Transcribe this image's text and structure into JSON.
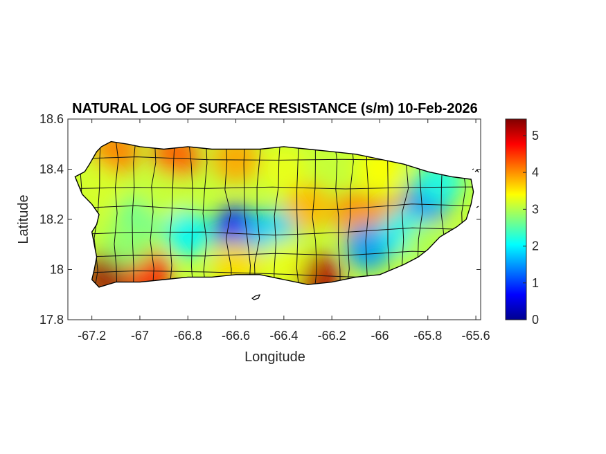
{
  "chart_data": {
    "type": "heatmap",
    "title": "NATURAL LOG OF SURFACE RESISTANCE (s/m) 10-Feb-2026",
    "xlabel": "Longitude",
    "ylabel": "Latitude",
    "xlim": [
      -67.3,
      -65.58
    ],
    "ylim": [
      17.8,
      18.6
    ],
    "x_ticks": [
      -67.2,
      -67,
      -66.8,
      -66.6,
      -66.4,
      -66.2,
      -66,
      -65.8,
      -65.6
    ],
    "x_tick_labels": [
      "-67.2",
      "-67",
      "-66.8",
      "-66.6",
      "-66.4",
      "-66.2",
      "-66",
      "-65.8",
      "-65.6"
    ],
    "y_ticks": [
      17.8,
      18,
      18.2,
      18.4,
      18.6
    ],
    "y_tick_labels": [
      "17.8",
      "18",
      "18.2",
      "18.4",
      "18.6"
    ],
    "colorbar": {
      "colormap": "jet",
      "range": [
        0,
        5.45
      ],
      "ticks": [
        0,
        1,
        2,
        3,
        4,
        5
      ],
      "tick_labels": [
        "0",
        "1",
        "2",
        "3",
        "4",
        "5"
      ]
    },
    "grid": false,
    "outline_points": [
      [
        -67.27,
        18.37
      ],
      [
        -67.23,
        18.39
      ],
      [
        -67.21,
        18.42
      ],
      [
        -67.18,
        18.47
      ],
      [
        -67.16,
        18.49
      ],
      [
        -67.12,
        18.51
      ],
      [
        -67.05,
        18.5
      ],
      [
        -67.0,
        18.49
      ],
      [
        -66.9,
        18.48
      ],
      [
        -66.8,
        18.49
      ],
      [
        -66.7,
        18.48
      ],
      [
        -66.6,
        18.48
      ],
      [
        -66.5,
        18.48
      ],
      [
        -66.4,
        18.49
      ],
      [
        -66.3,
        18.48
      ],
      [
        -66.2,
        18.47
      ],
      [
        -66.1,
        18.46
      ],
      [
        -66.0,
        18.44
      ],
      [
        -65.9,
        18.42
      ],
      [
        -65.8,
        18.39
      ],
      [
        -65.7,
        18.37
      ],
      [
        -65.62,
        18.36
      ],
      [
        -65.61,
        18.31
      ],
      [
        -65.62,
        18.26
      ],
      [
        -65.64,
        18.2
      ],
      [
        -65.68,
        18.17
      ],
      [
        -65.75,
        18.13
      ],
      [
        -65.8,
        18.08
      ],
      [
        -65.84,
        18.05
      ],
      [
        -65.9,
        18.02
      ],
      [
        -66.0,
        17.98
      ],
      [
        -66.1,
        17.97
      ],
      [
        -66.2,
        17.95
      ],
      [
        -66.3,
        17.94
      ],
      [
        -66.4,
        17.96
      ],
      [
        -66.5,
        17.98
      ],
      [
        -66.6,
        17.98
      ],
      [
        -66.7,
        17.97
      ],
      [
        -66.8,
        17.97
      ],
      [
        -66.9,
        17.96
      ],
      [
        -67.0,
        17.95
      ],
      [
        -67.1,
        17.95
      ],
      [
        -67.17,
        17.93
      ],
      [
        -67.2,
        17.96
      ],
      [
        -67.19,
        18.0
      ],
      [
        -67.18,
        18.05
      ],
      [
        -67.19,
        18.1
      ],
      [
        -67.2,
        18.15
      ],
      [
        -67.18,
        18.18
      ],
      [
        -67.17,
        18.22
      ],
      [
        -67.2,
        18.26
      ],
      [
        -67.24,
        18.3
      ]
    ],
    "value_field": [
      {
        "lon": -67.13,
        "lat": 17.98,
        "value": 5.3
      },
      {
        "lon": -66.97,
        "lat": 17.99,
        "value": 4.8
      },
      {
        "lon": -66.26,
        "lat": 17.97,
        "value": 5.2
      },
      {
        "lon": -66.85,
        "lat": 18.45,
        "value": 4.3
      },
      {
        "lon": -67.1,
        "lat": 18.47,
        "value": 4.1
      },
      {
        "lon": -66.6,
        "lat": 18.44,
        "value": 3.9
      },
      {
        "lon": -66.1,
        "lat": 18.22,
        "value": 4.0
      },
      {
        "lon": -65.95,
        "lat": 18.2,
        "value": 4.0
      },
      {
        "lon": -66.3,
        "lat": 18.25,
        "value": 3.8
      },
      {
        "lon": -66.6,
        "lat": 18.16,
        "value": 0.9
      },
      {
        "lon": -66.45,
        "lat": 18.15,
        "value": 1.8
      },
      {
        "lon": -66.8,
        "lat": 18.14,
        "value": 2.0
      },
      {
        "lon": -65.8,
        "lat": 18.28,
        "value": 1.3
      },
      {
        "lon": -66.05,
        "lat": 18.09,
        "value": 1.5
      },
      {
        "lon": -65.9,
        "lat": 18.15,
        "value": 2.0
      },
      {
        "lon": -65.75,
        "lat": 18.35,
        "value": 2.2
      },
      {
        "lon": -67.0,
        "lat": 18.2,
        "value": 2.6
      },
      {
        "lon": -66.9,
        "lat": 18.3,
        "value": 3.1
      },
      {
        "lon": -67.18,
        "lat": 18.33,
        "value": 3.2
      },
      {
        "lon": -66.4,
        "lat": 18.4,
        "value": 3.3
      },
      {
        "lon": -66.0,
        "lat": 18.4,
        "value": 3.4
      },
      {
        "lon": -66.6,
        "lat": 18.02,
        "value": 3.6
      },
      {
        "lon": -66.4,
        "lat": 18.03,
        "value": 3.3
      },
      {
        "lon": -65.8,
        "lat": 18.1,
        "value": 3.0
      },
      {
        "lon": -67.05,
        "lat": 18.1,
        "value": 2.8
      }
    ]
  }
}
